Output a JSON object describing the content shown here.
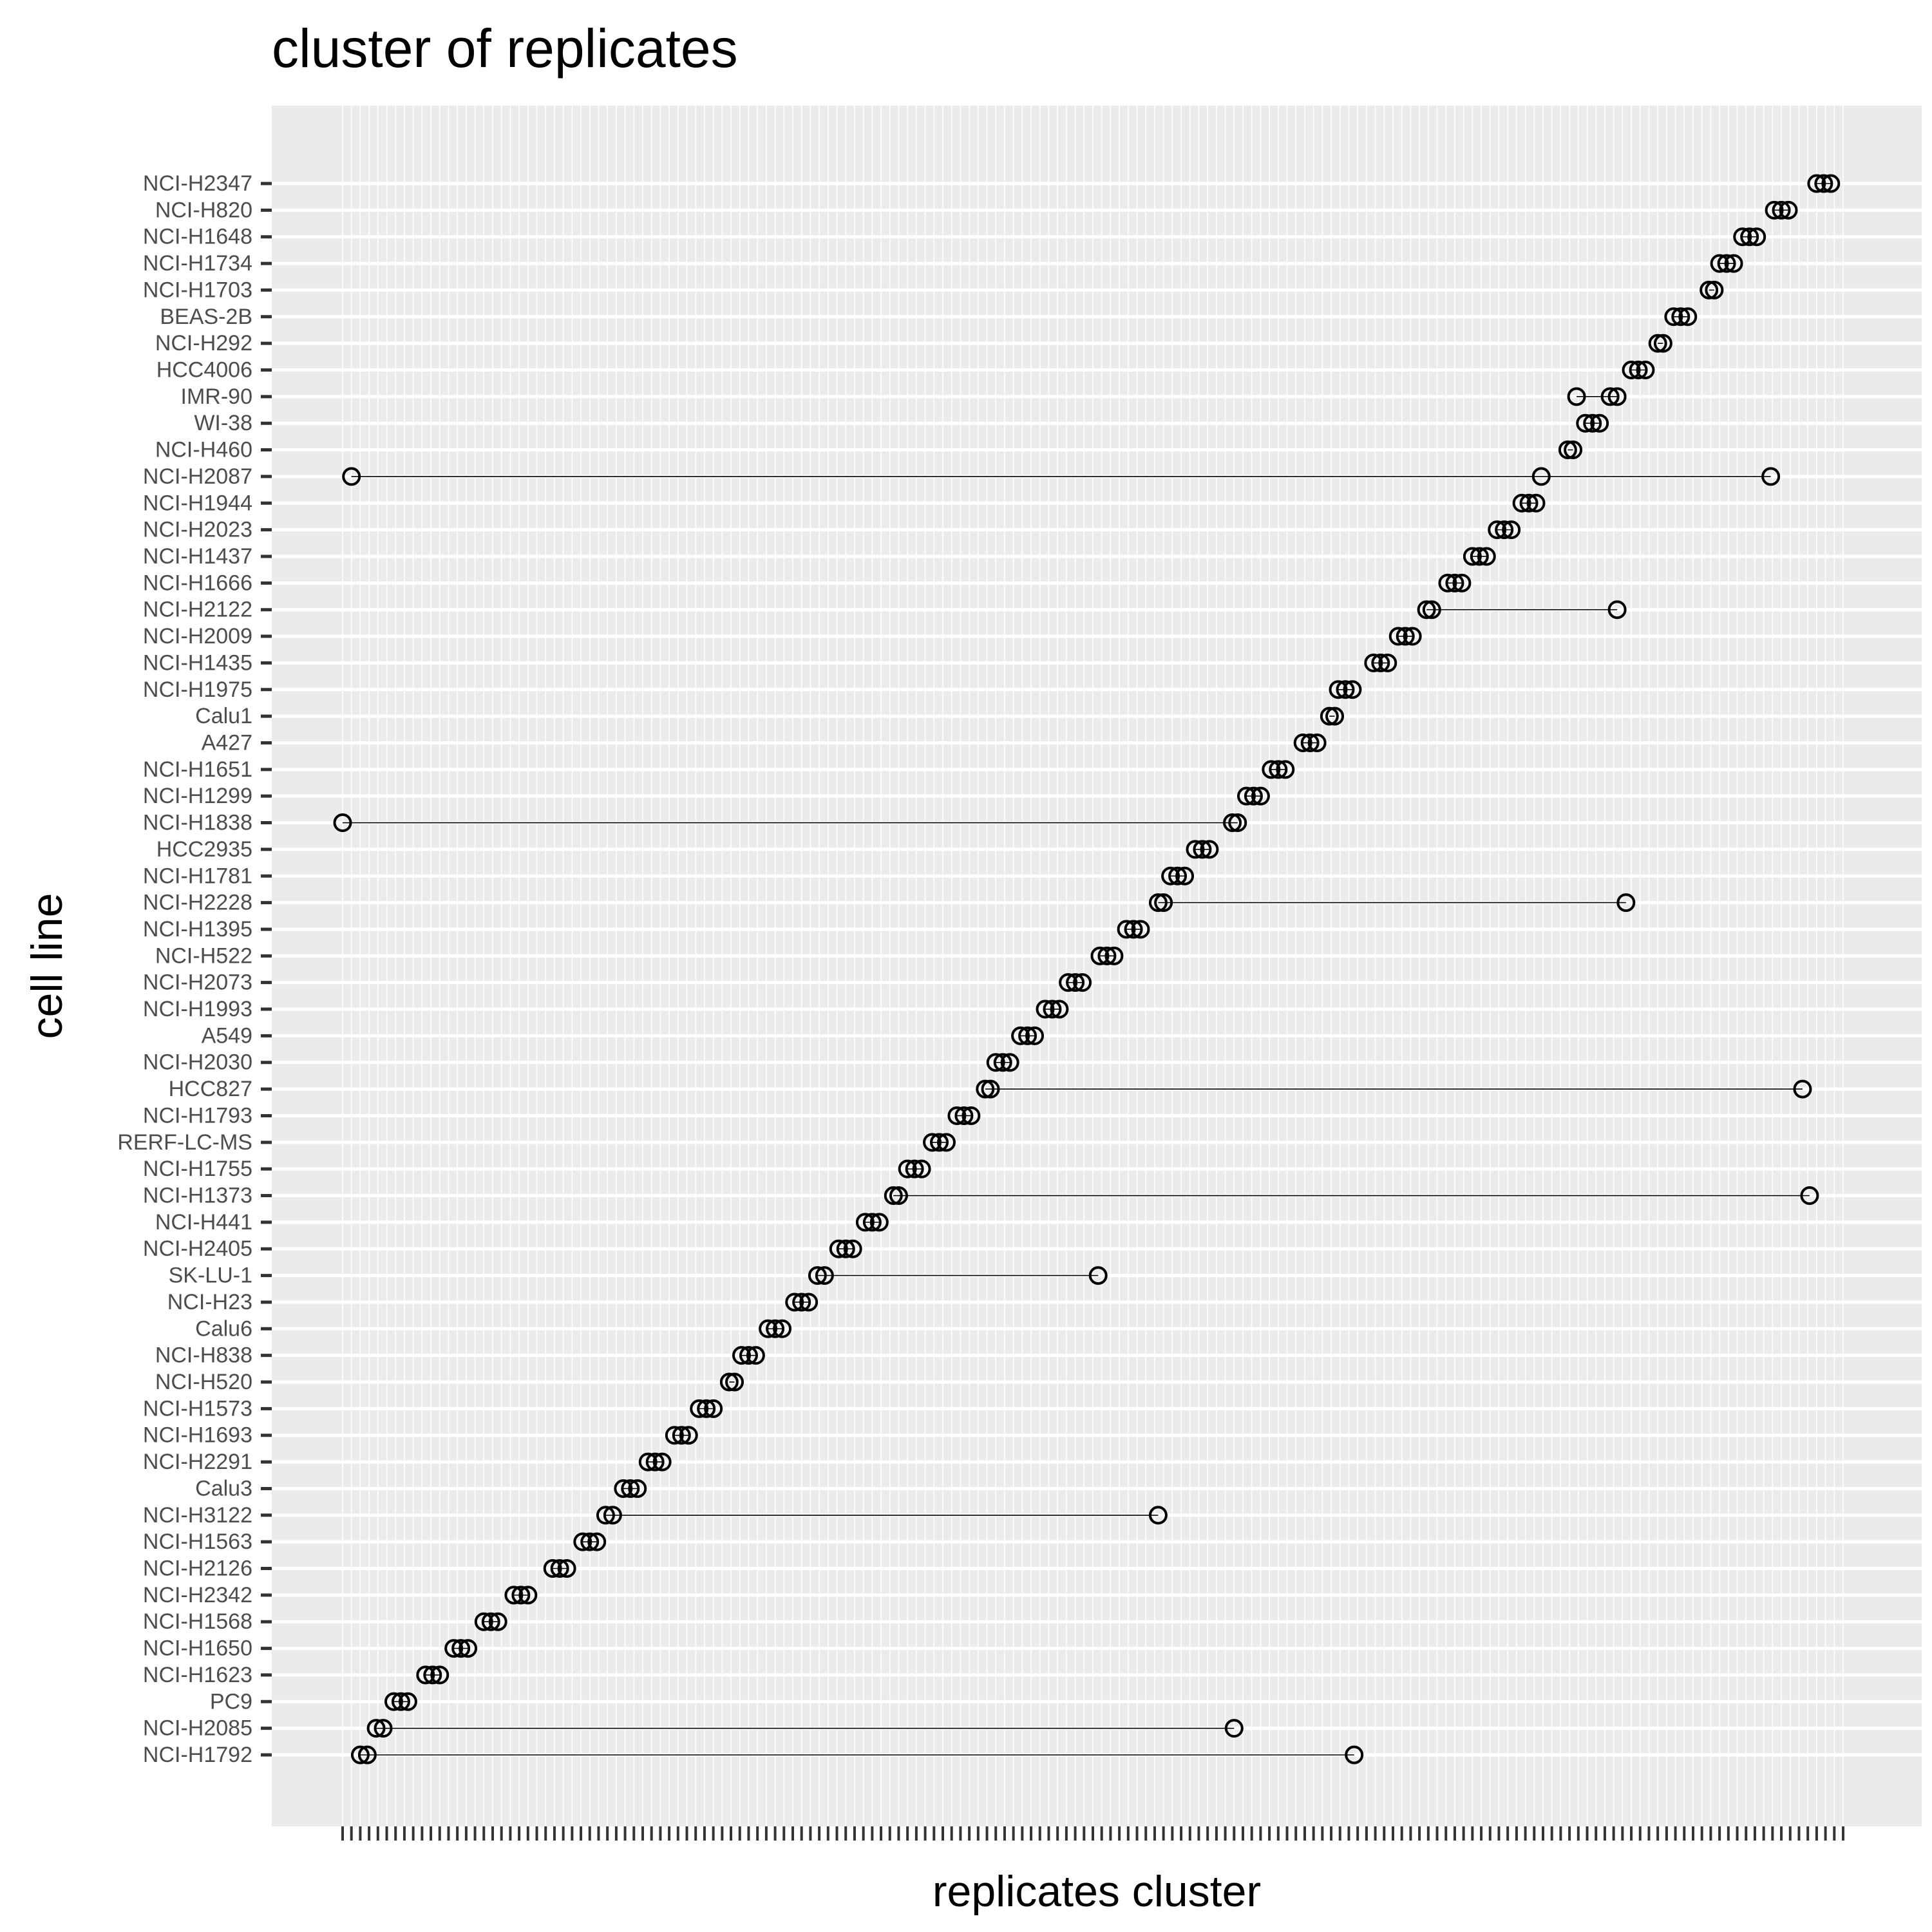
{
  "chart_data": {
    "type": "scatter",
    "title": "cluster of replicates",
    "xlabel": "replicates cluster",
    "ylabel": "cell line",
    "xlim": [
      0,
      170
    ],
    "x_tick_labels_legible": false,
    "grid": true,
    "legend": "none",
    "marker": "open-circle",
    "colors": {
      "panel_background": "#ebebeb",
      "grid_line": "#ffffff",
      "point_stroke": "#000000",
      "segment": "#000000",
      "tick_label": "#4d4d4d",
      "text": "#000000"
    },
    "series": [
      {
        "category": "NCI-H2347",
        "x": [
          167.0,
          167.8,
          168.6
        ]
      },
      {
        "category": "NCI-H820",
        "x": [
          162.2,
          163.0,
          163.8
        ]
      },
      {
        "category": "NCI-H1648",
        "x": [
          158.6,
          159.4,
          160.2
        ]
      },
      {
        "category": "NCI-H1734",
        "x": [
          156.0,
          156.8,
          157.6
        ]
      },
      {
        "category": "NCI-H1703",
        "x": [
          154.8,
          155.4
        ]
      },
      {
        "category": "BEAS-2B",
        "x": [
          150.8,
          151.6,
          152.4
        ]
      },
      {
        "category": "NCI-H292",
        "x": [
          149.0,
          149.6
        ]
      },
      {
        "category": "HCC4006",
        "x": [
          146.0,
          146.8,
          147.6
        ]
      },
      {
        "category": "IMR-90",
        "x": [
          139.8,
          143.6,
          144.4
        ]
      },
      {
        "category": "WI-38",
        "x": [
          140.8,
          141.6,
          142.4
        ]
      },
      {
        "category": "NCI-H460",
        "x": [
          138.8,
          139.4
        ]
      },
      {
        "category": "NCI-H2087",
        "x": [
          1.0,
          135.8,
          161.8
        ]
      },
      {
        "category": "NCI-H1944",
        "x": [
          133.6,
          134.4,
          135.2
        ]
      },
      {
        "category": "NCI-H2023",
        "x": [
          130.8,
          131.6,
          132.4
        ]
      },
      {
        "category": "NCI-H1437",
        "x": [
          128.0,
          128.8,
          129.6
        ]
      },
      {
        "category": "NCI-H1666",
        "x": [
          125.2,
          126.0,
          126.8
        ]
      },
      {
        "category": "NCI-H2122",
        "x": [
          122.8,
          123.4,
          144.4
        ]
      },
      {
        "category": "NCI-H2009",
        "x": [
          119.6,
          120.4,
          121.2
        ]
      },
      {
        "category": "NCI-H1435",
        "x": [
          116.8,
          117.6,
          118.4
        ]
      },
      {
        "category": "NCI-H1975",
        "x": [
          112.8,
          113.6,
          114.4
        ]
      },
      {
        "category": "Calu1",
        "x": [
          111.8,
          112.4
        ]
      },
      {
        "category": "A427",
        "x": [
          108.8,
          109.6,
          110.4
        ]
      },
      {
        "category": "NCI-H1651",
        "x": [
          105.2,
          106.0,
          106.8
        ]
      },
      {
        "category": "NCI-H1299",
        "x": [
          102.4,
          103.2,
          104.0
        ]
      },
      {
        "category": "NCI-H1838",
        "x": [
          0.0,
          100.8,
          101.4
        ]
      },
      {
        "category": "HCC2935",
        "x": [
          96.6,
          97.4,
          98.2
        ]
      },
      {
        "category": "NCI-H1781",
        "x": [
          93.8,
          94.6,
          95.4
        ]
      },
      {
        "category": "NCI-H2228",
        "x": [
          92.4,
          93.0,
          145.4
        ]
      },
      {
        "category": "NCI-H1395",
        "x": [
          88.8,
          89.6,
          90.4
        ]
      },
      {
        "category": "NCI-H522",
        "x": [
          85.8,
          86.6,
          87.4
        ]
      },
      {
        "category": "NCI-H2073",
        "x": [
          82.2,
          83.0,
          83.8
        ]
      },
      {
        "category": "NCI-H1993",
        "x": [
          79.6,
          80.4,
          81.2
        ]
      },
      {
        "category": "A549",
        "x": [
          76.8,
          77.6,
          78.4
        ]
      },
      {
        "category": "NCI-H2030",
        "x": [
          74.0,
          74.8,
          75.6
        ]
      },
      {
        "category": "HCC827",
        "x": [
          72.8,
          73.4,
          165.4
        ]
      },
      {
        "category": "NCI-H1793",
        "x": [
          69.6,
          70.4,
          71.2
        ]
      },
      {
        "category": "RERF-LC-MS",
        "x": [
          66.8,
          67.6,
          68.4
        ]
      },
      {
        "category": "NCI-H1755",
        "x": [
          64.0,
          64.8,
          65.6
        ]
      },
      {
        "category": "NCI-H1373",
        "x": [
          62.4,
          63.0,
          166.2
        ]
      },
      {
        "category": "NCI-H441",
        "x": [
          59.2,
          60.0,
          60.8
        ]
      },
      {
        "category": "NCI-H2405",
        "x": [
          56.2,
          57.0,
          57.8
        ]
      },
      {
        "category": "SK-LU-1",
        "x": [
          53.8,
          54.6,
          85.6
        ]
      },
      {
        "category": "NCI-H23",
        "x": [
          51.2,
          52.0,
          52.8
        ]
      },
      {
        "category": "Calu6",
        "x": [
          48.2,
          49.0,
          49.8
        ]
      },
      {
        "category": "NCI-H838",
        "x": [
          45.2,
          46.0,
          46.8
        ]
      },
      {
        "category": "NCI-H520",
        "x": [
          43.8,
          44.4
        ]
      },
      {
        "category": "NCI-H1573",
        "x": [
          40.4,
          41.2,
          42.0
        ]
      },
      {
        "category": "NCI-H1693",
        "x": [
          37.6,
          38.4,
          39.2
        ]
      },
      {
        "category": "NCI-H2291",
        "x": [
          34.6,
          35.4,
          36.2
        ]
      },
      {
        "category": "Calu3",
        "x": [
          31.8,
          32.6,
          33.4
        ]
      },
      {
        "category": "NCI-H3122",
        "x": [
          29.8,
          30.6,
          92.4
        ]
      },
      {
        "category": "NCI-H1563",
        "x": [
          27.2,
          28.0,
          28.8
        ]
      },
      {
        "category": "NCI-H2126",
        "x": [
          23.8,
          24.6,
          25.4
        ]
      },
      {
        "category": "NCI-H2342",
        "x": [
          19.4,
          20.2,
          21.0
        ]
      },
      {
        "category": "NCI-H1568",
        "x": [
          16.0,
          16.8,
          17.6
        ]
      },
      {
        "category": "NCI-H1650",
        "x": [
          12.6,
          13.4,
          14.2
        ]
      },
      {
        "category": "NCI-H1623",
        "x": [
          9.4,
          10.2,
          11.0
        ]
      },
      {
        "category": "PC9",
        "x": [
          5.8,
          6.6,
          7.4
        ]
      },
      {
        "category": "NCI-H2085",
        "x": [
          3.8,
          4.6,
          101.0
        ]
      },
      {
        "category": "NCI-H1792",
        "x": [
          2.0,
          2.8,
          114.6
        ]
      }
    ]
  }
}
